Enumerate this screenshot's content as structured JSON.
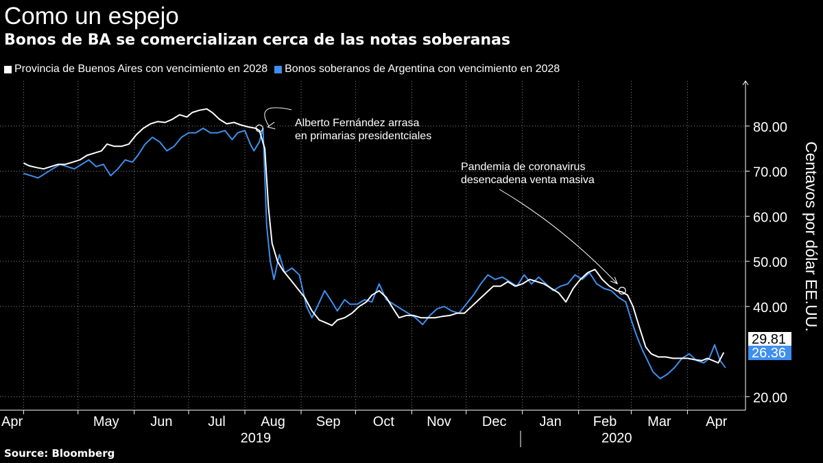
{
  "title": "Como un espejo",
  "subtitle": "Bonos de BA se comercializan cerca de las notas soberanas",
  "source": "Source:  Bloomberg",
  "colors": {
    "background": "#000000",
    "series_white": "#ffffff",
    "series_blue": "#3f8fef",
    "grid": "#8a8a8a"
  },
  "chart_data": {
    "type": "line",
    "ylabel": "Centavos por dólar EE.UU.",
    "ylim": [
      17,
      90
    ],
    "y_ticks": [
      "20.00",
      "40.00",
      "50.00",
      "60.00",
      "70.00",
      "80.00"
    ],
    "y_tick_values": [
      20,
      40,
      50,
      60,
      70,
      80
    ],
    "x_tick_labels": [
      "Apr",
      "May",
      "Jun",
      "Jul",
      "Aug",
      "Sep",
      "Oct",
      "Nov",
      "Dec",
      "Jan",
      "Feb",
      "Mar",
      "Apr"
    ],
    "x_tick_dates": [
      "2019-04-01",
      "2019-05-01",
      "2019-06-01",
      "2019-07-01",
      "2019-08-01",
      "2019-09-01",
      "2019-10-01",
      "2019-11-01",
      "2019-12-01",
      "2020-01-01",
      "2020-02-01",
      "2020-03-01",
      "2020-04-01"
    ],
    "year_labels": [
      {
        "label": "2019",
        "date": "2019-08-07"
      },
      {
        "label": "2020",
        "date": "2020-02-22"
      }
    ],
    "year_divider_date": "2019-12-31",
    "grid": true,
    "legend_position": "top-left",
    "series": [
      {
        "name": "Provincia de Buenos Aires con vencimiento en 2028",
        "color": "#ffffff",
        "last_value": "29.81",
        "points": [
          [
            "2019-04-01",
            71.8
          ],
          [
            "2019-04-04",
            71.2
          ],
          [
            "2019-04-08",
            70.8
          ],
          [
            "2019-04-12",
            70.5
          ],
          [
            "2019-04-16",
            71.0
          ],
          [
            "2019-04-20",
            71.5
          ],
          [
            "2019-04-24",
            71.5
          ],
          [
            "2019-04-28",
            72.0
          ],
          [
            "2019-05-02",
            72.5
          ],
          [
            "2019-05-06",
            73.5
          ],
          [
            "2019-05-10",
            74.0
          ],
          [
            "2019-05-14",
            74.5
          ],
          [
            "2019-05-17",
            76.0
          ],
          [
            "2019-05-21",
            75.5
          ],
          [
            "2019-05-25",
            75.5
          ],
          [
            "2019-05-29",
            76.0
          ],
          [
            "2019-06-02",
            78.0
          ],
          [
            "2019-06-06",
            79.5
          ],
          [
            "2019-06-10",
            80.5
          ],
          [
            "2019-06-14",
            81.0
          ],
          [
            "2019-06-18",
            80.8
          ],
          [
            "2019-06-22",
            81.5
          ],
          [
            "2019-06-26",
            82.5
          ],
          [
            "2019-06-30",
            82.0
          ],
          [
            "2019-07-03",
            83.0
          ],
          [
            "2019-07-07",
            83.5
          ],
          [
            "2019-07-11",
            83.8
          ],
          [
            "2019-07-14",
            83.0
          ],
          [
            "2019-07-18",
            81.5
          ],
          [
            "2019-07-22",
            80.5
          ],
          [
            "2019-07-26",
            80.8
          ],
          [
            "2019-07-30",
            80.2
          ],
          [
            "2019-08-03",
            79.8
          ],
          [
            "2019-08-07",
            79.5
          ],
          [
            "2019-08-09",
            79.0
          ],
          [
            "2019-08-12",
            75.0
          ],
          [
            "2019-08-14",
            62.0
          ],
          [
            "2019-08-16",
            54.0
          ],
          [
            "2019-08-19",
            50.0
          ],
          [
            "2019-08-22",
            48.0
          ],
          [
            "2019-08-26",
            46.0
          ],
          [
            "2019-08-30",
            44.0
          ],
          [
            "2019-09-03",
            42.0
          ],
          [
            "2019-09-07",
            39.0
          ],
          [
            "2019-09-11",
            37.0
          ],
          [
            "2019-09-14",
            36.5
          ],
          [
            "2019-09-18",
            35.8
          ],
          [
            "2019-09-21",
            37.0
          ],
          [
            "2019-09-25",
            37.5
          ],
          [
            "2019-09-29",
            38.5
          ],
          [
            "2019-10-03",
            40.0
          ],
          [
            "2019-10-07",
            41.0
          ],
          [
            "2019-10-10",
            42.5
          ],
          [
            "2019-10-14",
            43.5
          ],
          [
            "2019-10-18",
            42.0
          ],
          [
            "2019-10-21",
            40.0
          ],
          [
            "2019-10-25",
            37.5
          ],
          [
            "2019-10-29",
            38.0
          ],
          [
            "2019-11-02",
            38.0
          ],
          [
            "2019-11-06",
            37.5
          ],
          [
            "2019-11-10",
            37.5
          ],
          [
            "2019-11-14",
            37.5
          ],
          [
            "2019-11-18",
            37.8
          ],
          [
            "2019-11-22",
            38.0
          ],
          [
            "2019-11-26",
            38.5
          ],
          [
            "2019-11-30",
            38.5
          ],
          [
            "2019-12-04",
            40.0
          ],
          [
            "2019-12-08",
            41.5
          ],
          [
            "2019-12-12",
            43.0
          ],
          [
            "2019-12-16",
            44.5
          ],
          [
            "2019-12-20",
            44.5
          ],
          [
            "2019-12-24",
            45.5
          ],
          [
            "2019-12-28",
            44.5
          ],
          [
            "2020-01-01",
            45.0
          ],
          [
            "2020-01-05",
            46.0
          ],
          [
            "2020-01-09",
            45.5
          ],
          [
            "2020-01-13",
            45.0
          ],
          [
            "2020-01-17",
            44.0
          ],
          [
            "2020-01-21",
            43.0
          ],
          [
            "2020-01-25",
            41.0
          ],
          [
            "2020-01-29",
            44.0
          ],
          [
            "2020-02-02",
            46.0
          ],
          [
            "2020-02-06",
            47.5
          ],
          [
            "2020-02-10",
            48.2
          ],
          [
            "2020-02-14",
            46.0
          ],
          [
            "2020-02-18",
            44.5
          ],
          [
            "2020-02-22",
            43.5
          ],
          [
            "2020-02-25",
            43.2
          ],
          [
            "2020-02-28",
            42.5
          ],
          [
            "2020-03-02",
            40.0
          ],
          [
            "2020-03-05",
            36.0
          ],
          [
            "2020-03-09",
            31.0
          ],
          [
            "2020-03-12",
            29.5
          ],
          [
            "2020-03-16",
            28.8
          ],
          [
            "2020-03-20",
            28.8
          ],
          [
            "2020-03-24",
            28.5
          ],
          [
            "2020-03-28",
            28.5
          ],
          [
            "2020-04-01",
            28.5
          ],
          [
            "2020-04-05",
            28.2
          ],
          [
            "2020-04-09",
            28.0
          ],
          [
            "2020-04-12",
            28.5
          ],
          [
            "2020-04-15",
            28.0
          ],
          [
            "2020-04-18",
            27.5
          ],
          [
            "2020-04-21",
            29.8
          ]
        ]
      },
      {
        "name": "Bonos soberanos de Argentina con vencimiento en 2028",
        "color": "#3f8fef",
        "last_value": "26.36",
        "points": [
          [
            "2019-04-01",
            69.5
          ],
          [
            "2019-04-05",
            69.0
          ],
          [
            "2019-04-09",
            68.5
          ],
          [
            "2019-04-13",
            69.5
          ],
          [
            "2019-04-17",
            70.5
          ],
          [
            "2019-04-21",
            71.5
          ],
          [
            "2019-04-25",
            71.0
          ],
          [
            "2019-04-29",
            70.5
          ],
          [
            "2019-05-03",
            71.5
          ],
          [
            "2019-05-07",
            72.5
          ],
          [
            "2019-05-11",
            71.0
          ],
          [
            "2019-05-15",
            71.5
          ],
          [
            "2019-05-19",
            69.0
          ],
          [
            "2019-05-23",
            70.5
          ],
          [
            "2019-05-27",
            72.5
          ],
          [
            "2019-05-31",
            72.0
          ],
          [
            "2019-06-03",
            73.5
          ],
          [
            "2019-06-07",
            76.0
          ],
          [
            "2019-06-11",
            77.5
          ],
          [
            "2019-06-15",
            76.5
          ],
          [
            "2019-06-19",
            74.5
          ],
          [
            "2019-06-23",
            75.5
          ],
          [
            "2019-06-27",
            77.5
          ],
          [
            "2019-07-01",
            78.5
          ],
          [
            "2019-07-05",
            78.5
          ],
          [
            "2019-07-09",
            79.5
          ],
          [
            "2019-07-13",
            78.5
          ],
          [
            "2019-07-17",
            78.5
          ],
          [
            "2019-07-21",
            79.0
          ],
          [
            "2019-07-25",
            77.0
          ],
          [
            "2019-07-28",
            78.5
          ],
          [
            "2019-08-01",
            79.0
          ],
          [
            "2019-08-04",
            76.0
          ],
          [
            "2019-08-06",
            74.5
          ],
          [
            "2019-08-09",
            76.5
          ],
          [
            "2019-08-11",
            79.5
          ],
          [
            "2019-08-13",
            58.0
          ],
          [
            "2019-08-15",
            50.0
          ],
          [
            "2019-08-17",
            46.0
          ],
          [
            "2019-08-20",
            51.5
          ],
          [
            "2019-08-23",
            47.5
          ],
          [
            "2019-08-27",
            48.5
          ],
          [
            "2019-08-31",
            47.0
          ],
          [
            "2019-09-04",
            40.0
          ],
          [
            "2019-09-07",
            37.5
          ],
          [
            "2019-09-10",
            40.0
          ],
          [
            "2019-09-14",
            43.5
          ],
          [
            "2019-09-18",
            41.0
          ],
          [
            "2019-09-21",
            39.0
          ],
          [
            "2019-09-25",
            41.5
          ],
          [
            "2019-09-28",
            40.5
          ],
          [
            "2019-10-02",
            40.5
          ],
          [
            "2019-10-06",
            41.5
          ],
          [
            "2019-10-10",
            41.0
          ],
          [
            "2019-10-14",
            45.0
          ],
          [
            "2019-10-18",
            41.5
          ],
          [
            "2019-10-22",
            40.5
          ],
          [
            "2019-10-26",
            39.5
          ],
          [
            "2019-10-30",
            38.5
          ],
          [
            "2019-11-03",
            37.5
          ],
          [
            "2019-11-07",
            36.0
          ],
          [
            "2019-11-11",
            38.0
          ],
          [
            "2019-11-15",
            39.5
          ],
          [
            "2019-11-19",
            40.0
          ],
          [
            "2019-11-23",
            39.0
          ],
          [
            "2019-11-27",
            38.5
          ],
          [
            "2019-12-01",
            40.5
          ],
          [
            "2019-12-05",
            42.5
          ],
          [
            "2019-12-09",
            45.0
          ],
          [
            "2019-12-13",
            47.0
          ],
          [
            "2019-12-17",
            46.0
          ],
          [
            "2019-12-21",
            46.5
          ],
          [
            "2019-12-25",
            45.5
          ],
          [
            "2019-12-29",
            44.5
          ],
          [
            "2020-01-02",
            47.0
          ],
          [
            "2020-01-06",
            45.0
          ],
          [
            "2020-01-10",
            46.5
          ],
          [
            "2020-01-14",
            45.0
          ],
          [
            "2020-01-18",
            43.5
          ],
          [
            "2020-01-22",
            44.5
          ],
          [
            "2020-01-26",
            45.0
          ],
          [
            "2020-01-30",
            47.0
          ],
          [
            "2020-02-03",
            46.0
          ],
          [
            "2020-02-07",
            47.5
          ],
          [
            "2020-02-11",
            45.0
          ],
          [
            "2020-02-15",
            44.0
          ],
          [
            "2020-02-19",
            43.5
          ],
          [
            "2020-02-23",
            42.0
          ],
          [
            "2020-02-27",
            41.0
          ],
          [
            "2020-03-01",
            37.0
          ],
          [
            "2020-03-04",
            33.5
          ],
          [
            "2020-03-07",
            30.5
          ],
          [
            "2020-03-10",
            28.0
          ],
          [
            "2020-03-13",
            25.5
          ],
          [
            "2020-03-17",
            24.0
          ],
          [
            "2020-03-21",
            25.0
          ],
          [
            "2020-03-25",
            26.5
          ],
          [
            "2020-03-29",
            28.5
          ],
          [
            "2020-04-02",
            29.5
          ],
          [
            "2020-04-06",
            28.0
          ],
          [
            "2020-04-10",
            27.5
          ],
          [
            "2020-04-13",
            28.5
          ],
          [
            "2020-04-16",
            31.5
          ],
          [
            "2020-04-19",
            28.0
          ],
          [
            "2020-04-22",
            26.4
          ]
        ]
      }
    ],
    "annotations": [
      {
        "lines": [
          "Alberto Fernández arrasa",
          "en primarias presidentciales"
        ],
        "date": "2019-08-09",
        "value": 79.5
      },
      {
        "lines": [
          "Pandemia de coronavirus",
          "desencadena venta masiva"
        ],
        "date": "2020-02-25",
        "value": 43.5
      }
    ]
  }
}
